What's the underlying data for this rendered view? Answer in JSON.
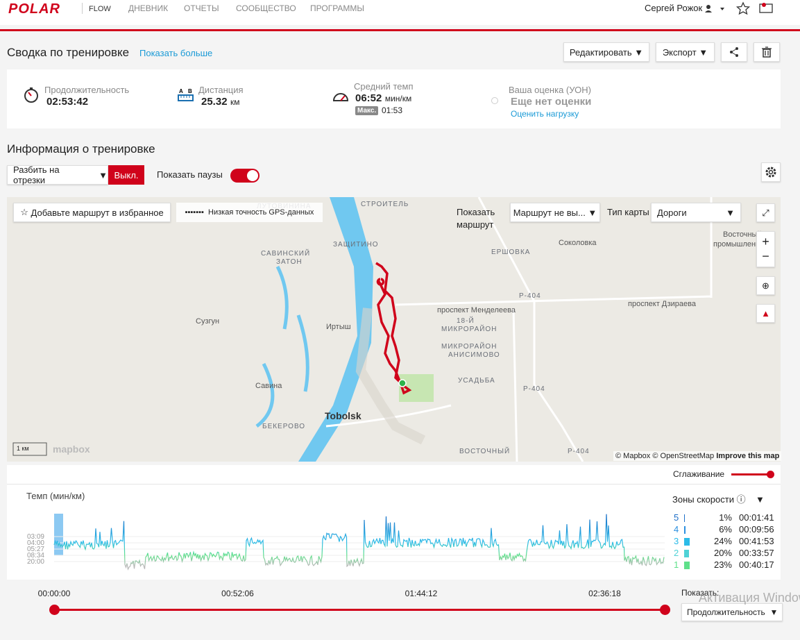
{
  "header": {
    "logo": "POLAR",
    "product": "FLOW",
    "nav": [
      "ДНЕВНИК",
      "ОТЧЕТЫ",
      "СООБЩЕСТВО",
      "ПРОГРАММЫ"
    ],
    "user": "Сергей Рожок"
  },
  "summary": {
    "title": "Сводка по тренировке",
    "more": "Показать больше",
    "buttons": [
      "Редактировать",
      "Экспорт"
    ]
  },
  "stats": {
    "duration": {
      "label": "Продолжительность",
      "value": "02:53:42"
    },
    "distance": {
      "label": "Дистанция",
      "value": "25.32",
      "unit": "км"
    },
    "pace": {
      "label": "Средний темп",
      "value": "06:52",
      "unit": "мин/км",
      "max_label": "Макс.",
      "max": "01:53"
    },
    "rating": {
      "label": "Ваша оценка (УОН)",
      "value": "Еще нет оценки",
      "link": "Оценить нагрузку"
    }
  },
  "info": {
    "title": "Информация о тренировке",
    "split": "Разбить на отрезки",
    "split_state": "Выкл.",
    "pauses": "Показать паузы"
  },
  "map": {
    "favorite": "Добавьте маршрут в избранное",
    "gps": "Низкая точность GPS-данных",
    "show_route": [
      "Показать",
      "маршрут"
    ],
    "route_select": "Маршрут не вы...",
    "map_type": "Тип карты",
    "map_type_value": "Дороги",
    "places": [
      "ЛУТОВИНИНА",
      "СТРОИТЕЛЬ",
      "ЗАЩИТИНО",
      "САВИНСКИЙ",
      "ЗАТОН",
      "ЕРШОВКА",
      "Соколовка",
      "Восточный",
      "промышленный",
      "Сузгун",
      "Иртыш",
      "проспект Менделеева",
      "проспект Дзираева",
      "18-Й",
      "МИКРОРАЙОН",
      "МИКРОРАЙОН",
      "АНИСИМОВО",
      "УСАДЬБА",
      "Савина",
      "Tobolsk",
      "БЕКЕРОВО",
      "ВОСТОЧНЫЙ",
      "Р-404",
      "Р-404",
      "Р-404"
    ],
    "scale": "1 км",
    "brand": "mapbox",
    "attribution": "© Mapbox © OpenStreetMap",
    "improve": "Improve this map"
  },
  "chart": {
    "smoothing": "Сглаживание",
    "title": "Темп (мин/км)",
    "yticks": [
      "03:09",
      "04:00",
      "05:27",
      "08:34",
      "20:00"
    ],
    "zones_title": "Зоны скорости",
    "zones": [
      {
        "zone": 5,
        "share": "1%",
        "time": "00:01:41"
      },
      {
        "zone": 4,
        "share": "6%",
        "time": "00:09:56"
      },
      {
        "zone": 3,
        "share": "24%",
        "time": "00:41:53"
      },
      {
        "zone": 2,
        "share": "20%",
        "time": "00:33:57"
      },
      {
        "zone": 1,
        "share": "23%",
        "time": "00:40:17"
      }
    ]
  },
  "timeline": {
    "labels": [
      "00:00:00",
      "00:52:06",
      "01:44:12",
      "02:36:18"
    ],
    "show": "Показать:",
    "show_value": "Продолжительность"
  },
  "watermark": "Активация Windows"
}
